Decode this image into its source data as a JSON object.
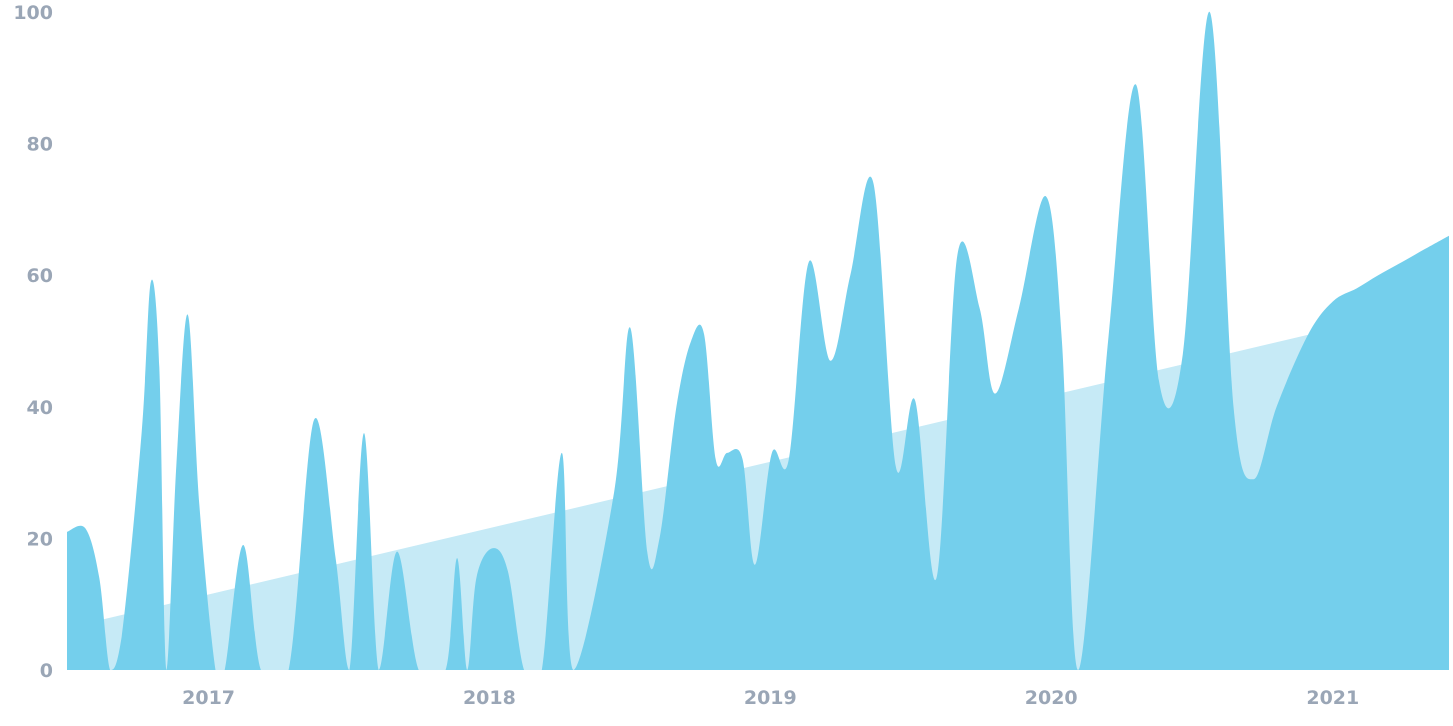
{
  "chart_data": {
    "type": "area",
    "xlim": [
      "2016-07-01",
      "2021-06-01"
    ],
    "ylim": [
      0,
      100
    ],
    "grid": false,
    "y_ticks": [
      0,
      20,
      40,
      60,
      80,
      100
    ],
    "x_ticks": [
      {
        "label": "2017",
        "date": "2017-01-01"
      },
      {
        "label": "2018",
        "date": "2018-01-01"
      },
      {
        "label": "2019",
        "date": "2019-01-01"
      },
      {
        "label": "2020",
        "date": "2020-01-01"
      },
      {
        "label": "2021",
        "date": "2021-01-01"
      }
    ],
    "series": [
      {
        "kind": "trend",
        "color": "#c6eaf6",
        "points": [
          [
            "2016-08-10",
            7.5
          ],
          [
            "2021-06-01",
            56
          ]
        ]
      },
      {
        "kind": "data",
        "color": "#74cfec",
        "points": [
          [
            "2016-07-01",
            21
          ],
          [
            "2016-07-25",
            21.5
          ],
          [
            "2016-08-12",
            14
          ],
          [
            "2016-08-26",
            0
          ],
          [
            "2016-09-10",
            5
          ],
          [
            "2016-10-06",
            36
          ],
          [
            "2016-10-18",
            59
          ],
          [
            "2016-10-29",
            46
          ],
          [
            "2016-11-07",
            0
          ],
          [
            "2016-11-20",
            31
          ],
          [
            "2016-12-05",
            54
          ],
          [
            "2016-12-20",
            25
          ],
          [
            "2017-01-10",
            0
          ],
          [
            "2017-01-22",
            0
          ],
          [
            "2017-02-15",
            19
          ],
          [
            "2017-03-10",
            0
          ],
          [
            "2017-04-15",
            0
          ],
          [
            "2017-05-18",
            38
          ],
          [
            "2017-06-15",
            17
          ],
          [
            "2017-07-03",
            0
          ],
          [
            "2017-07-22",
            36
          ],
          [
            "2017-08-10",
            0
          ],
          [
            "2017-09-03",
            18
          ],
          [
            "2017-10-01",
            0
          ],
          [
            "2017-11-05",
            0
          ],
          [
            "2017-11-20",
            17
          ],
          [
            "2017-12-03",
            0
          ],
          [
            "2017-12-15",
            14
          ],
          [
            "2018-01-05",
            18.5
          ],
          [
            "2018-01-25",
            15
          ],
          [
            "2018-02-15",
            0
          ],
          [
            "2018-03-10",
            0
          ],
          [
            "2018-04-05",
            33
          ],
          [
            "2018-04-20",
            0
          ],
          [
            "2018-06-12",
            27
          ],
          [
            "2018-07-03",
            52
          ],
          [
            "2018-07-25",
            18
          ],
          [
            "2018-08-10",
            20
          ],
          [
            "2018-09-01",
            40
          ],
          [
            "2018-09-20",
            50
          ],
          [
            "2018-10-07",
            51
          ],
          [
            "2018-10-22",
            32
          ],
          [
            "2018-11-06",
            33
          ],
          [
            "2018-11-26",
            32
          ],
          [
            "2018-12-12",
            16
          ],
          [
            "2019-01-03",
            33
          ],
          [
            "2019-01-25",
            32
          ],
          [
            "2019-02-20",
            62
          ],
          [
            "2019-03-20",
            47
          ],
          [
            "2019-04-15",
            60
          ],
          [
            "2019-05-15",
            74
          ],
          [
            "2019-06-13",
            31
          ],
          [
            "2019-07-08",
            41
          ],
          [
            "2019-08-05",
            14
          ],
          [
            "2019-09-01",
            63
          ],
          [
            "2019-09-30",
            55
          ],
          [
            "2019-10-20",
            42
          ],
          [
            "2019-11-20",
            55
          ],
          [
            "2019-12-25",
            72
          ],
          [
            "2020-01-15",
            50
          ],
          [
            "2020-02-05",
            0
          ],
          [
            "2020-03-15",
            50
          ],
          [
            "2020-04-20",
            89
          ],
          [
            "2020-05-20",
            44
          ],
          [
            "2020-06-20",
            48
          ],
          [
            "2020-07-25",
            100
          ],
          [
            "2020-08-25",
            40
          ],
          [
            "2020-09-20",
            29
          ],
          [
            "2020-10-20",
            40
          ],
          [
            "2020-11-30",
            51
          ],
          [
            "2021-01-01",
            56
          ],
          [
            "2021-02-01",
            58
          ],
          [
            "2021-03-01",
            60
          ],
          [
            "2021-04-01",
            62
          ],
          [
            "2021-05-01",
            64
          ],
          [
            "2021-06-01",
            66
          ]
        ]
      }
    ]
  }
}
